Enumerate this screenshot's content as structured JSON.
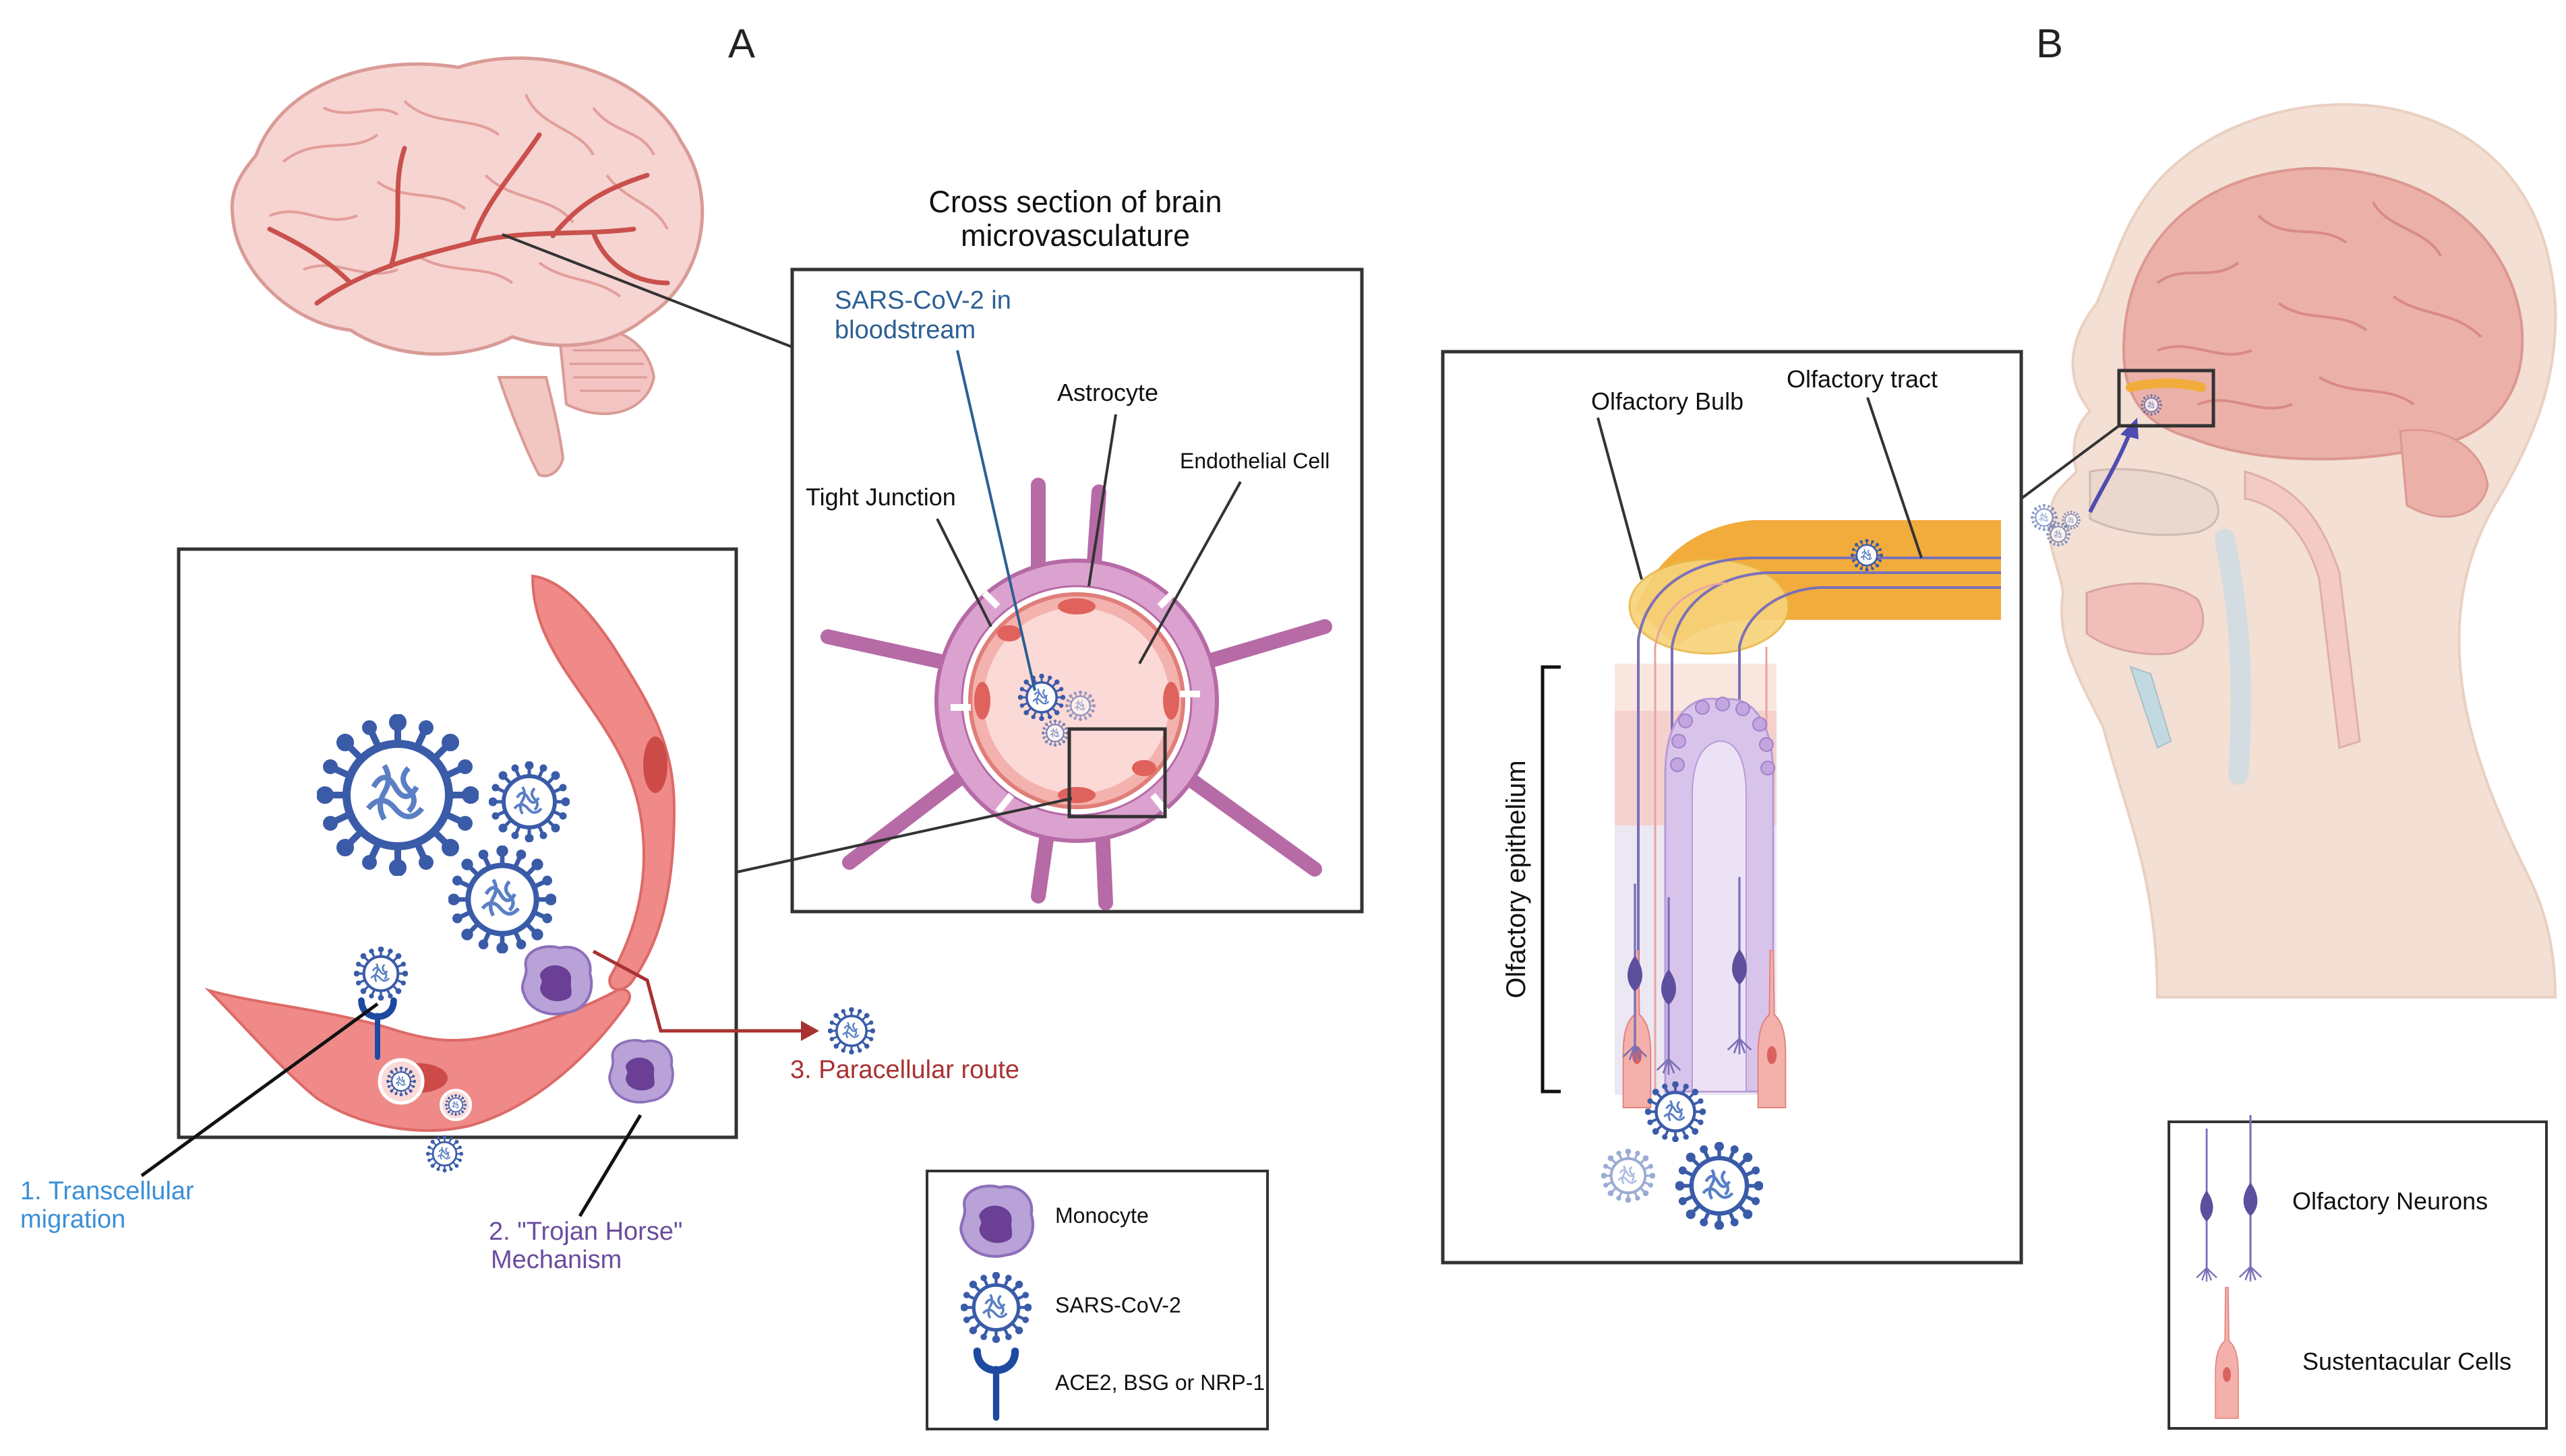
{
  "panels": {
    "a": {
      "label": "A"
    },
    "b": {
      "label": "B"
    }
  },
  "panel_a": {
    "cross_section_title_1": "Cross section of brain",
    "cross_section_title_2": "microvasculature",
    "bloodstream_1": "SARS-CoV-2 in",
    "bloodstream_2": "bloodstream",
    "astrocyte": "Astrocyte",
    "endothelial_cell": "Endothelial Cell",
    "tight_junction": "Tight Junction",
    "transcellular_1": "1. Transcellular",
    "transcellular_2": "migration",
    "trojan_1": "2. \"Trojan Horse\"",
    "trojan_2": "Mechanism",
    "paracellular": "3. Paracellular route"
  },
  "legend_a": {
    "monocyte": "Monocyte",
    "sars": "SARS-CoV-2",
    "receptor": "ACE2, BSG or NRP-1"
  },
  "panel_b": {
    "olfactory_bulb": "Olfactory Bulb",
    "olfactory_tract": "Olfactory tract",
    "olfactory_epithelium": "Olfactory epithelium"
  },
  "legend_b": {
    "neurons": "Olfactory Neurons",
    "sustentacular": "Sustentacular Cells"
  },
  "colors": {
    "vessel": "#ef8a88",
    "astrocyte": "#b66aa6",
    "virus": "#3a5ba8",
    "receptor": "#1d4aa0",
    "monocyte": "#9d7bc2",
    "label_blue": "#3b8fd6",
    "label_purple": "#6a4c9c",
    "label_red": "#a83232",
    "tract": "#f2ac3c",
    "bulb": "#f7d27a",
    "neuron": "#7b70b8"
  }
}
